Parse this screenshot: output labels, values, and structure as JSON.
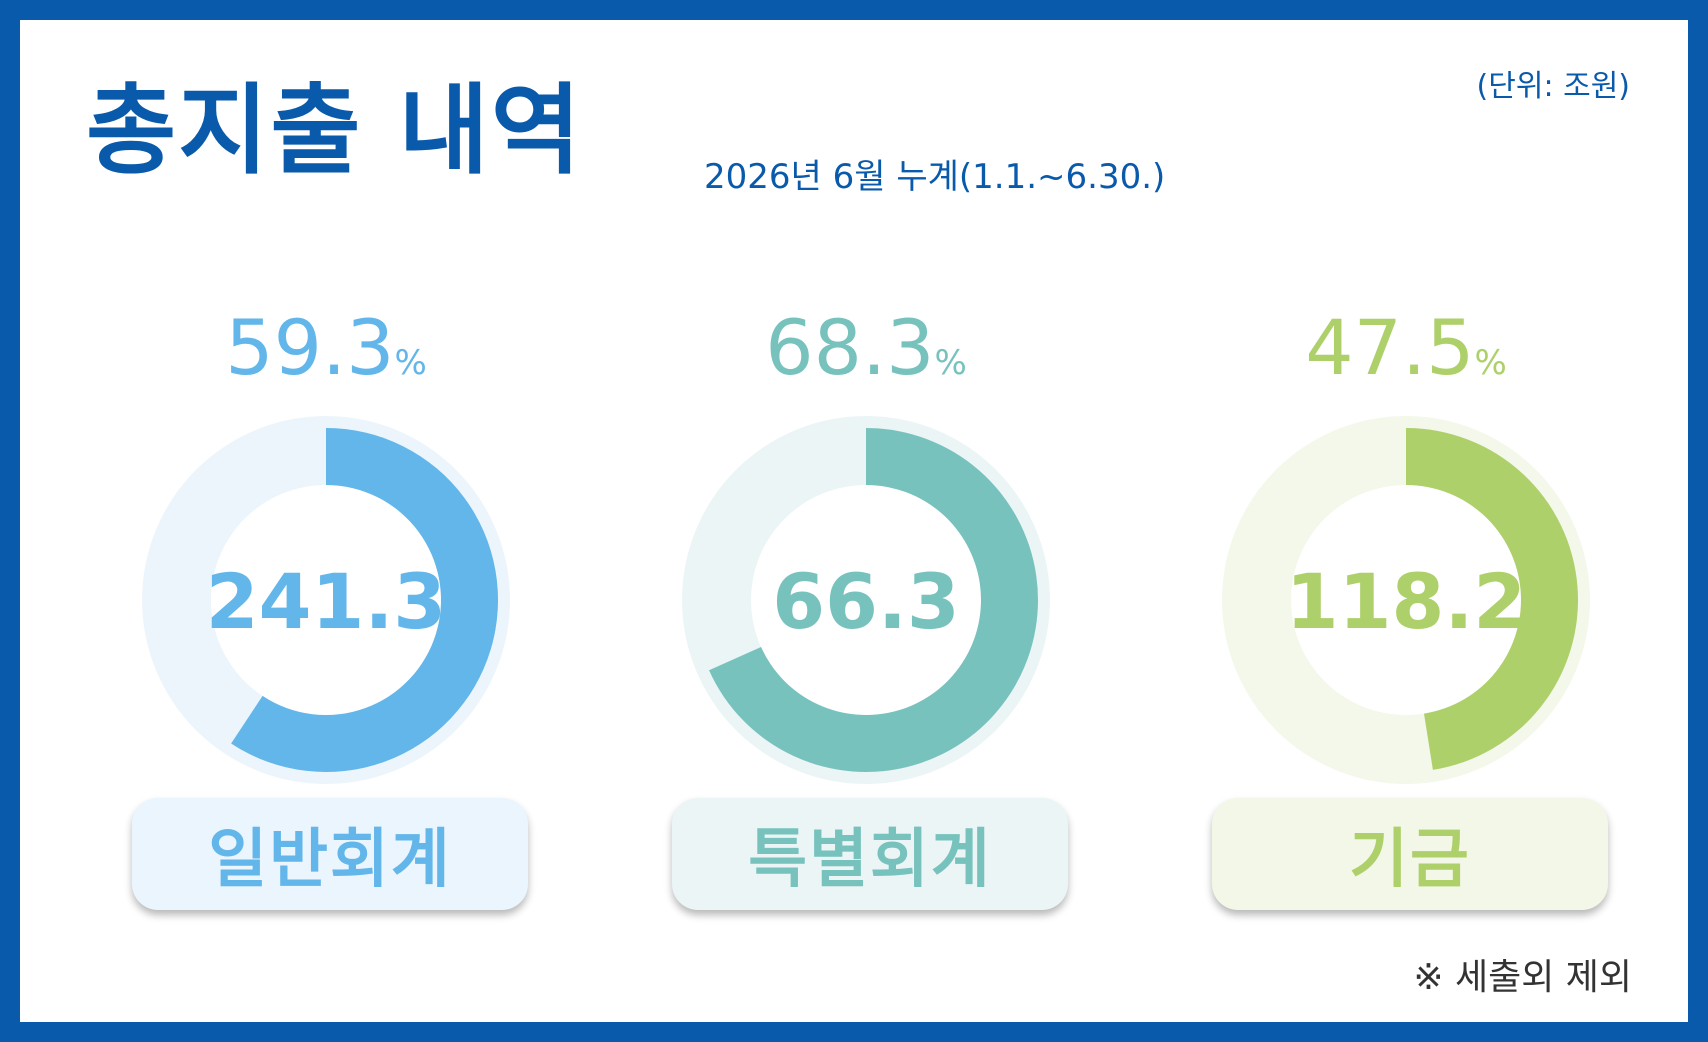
{
  "header": {
    "title": "총지출 내역",
    "subtitle": "2026년 6월 누계(1.1.~6.30.)",
    "unit": "(단위: 조원)"
  },
  "note": "※ 세출외 제외",
  "chart_data": {
    "type": "donut",
    "unit": "조원",
    "series": [
      {
        "name": "일반회계",
        "value": 241.3,
        "percent": 59.3,
        "percent_label": "59.3",
        "percent_sign": "%",
        "color": "#62b6ea",
        "track_color": "#edf5fc",
        "card_color": "#ebf5fd"
      },
      {
        "name": "특별회계",
        "value": 66.3,
        "percent": 68.3,
        "percent_label": "68.3",
        "percent_sign": "%",
        "color": "#78c2be",
        "track_color": "#ebf5f5",
        "card_color": "#ebf5f5"
      },
      {
        "name": "기금",
        "value": 118.2,
        "percent": 47.5,
        "percent_label": "47.5",
        "percent_sign": "%",
        "color": "#aed06a",
        "track_color": "#f3f8ea",
        "card_color": "#f2f7e8"
      }
    ]
  }
}
